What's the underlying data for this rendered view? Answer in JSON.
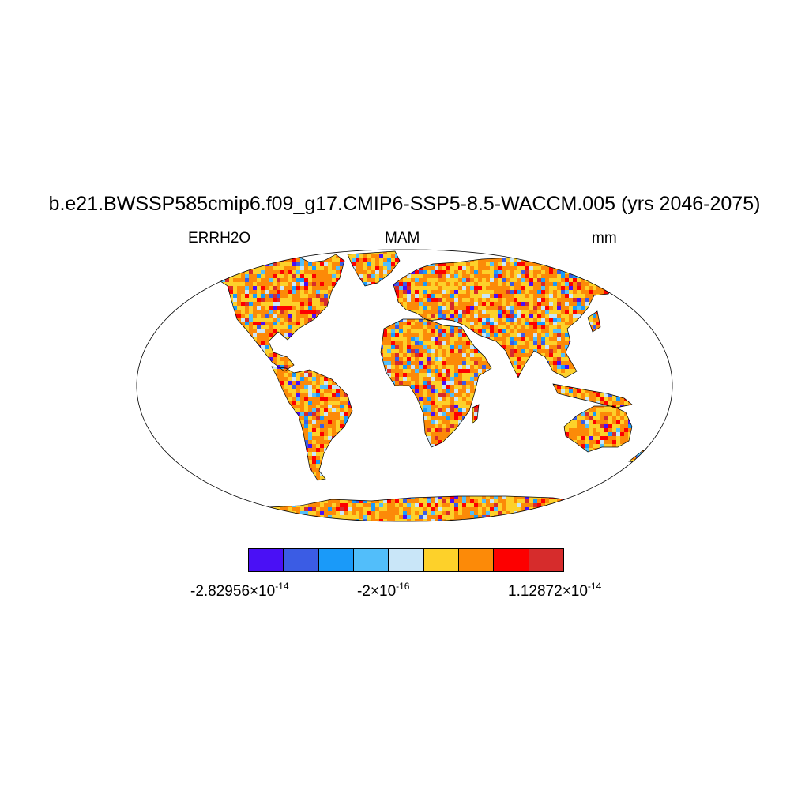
{
  "title": "b.e21.BWSSP585cmip6.f09_g17.CMIP6-SSP5-8.5-WACCM.005 (yrs 2046-2075)",
  "subtitles": {
    "left": "ERRH2O",
    "center": "MAM",
    "right": "mm"
  },
  "map": {
    "projection": "Robinson",
    "field": "land-only gridded field",
    "ocean_color": "#ffffff",
    "coastline_color": "#000000"
  },
  "colorbar": {
    "colors": [
      "#4a10f5",
      "#3b5ce4",
      "#1a9af9",
      "#52befa",
      "#c9e6f8",
      "#fdd12a",
      "#fc8a08",
      "#fd0000",
      "#d62c2c"
    ],
    "labels": [
      {
        "mantissa": "-2.82956",
        "times": "×10",
        "exp": "-14"
      },
      {
        "mantissa": "-2",
        "times": "×10",
        "exp": "-16"
      },
      {
        "mantissa": "1.12872",
        "times": "×10",
        "exp": "-14"
      }
    ]
  }
}
